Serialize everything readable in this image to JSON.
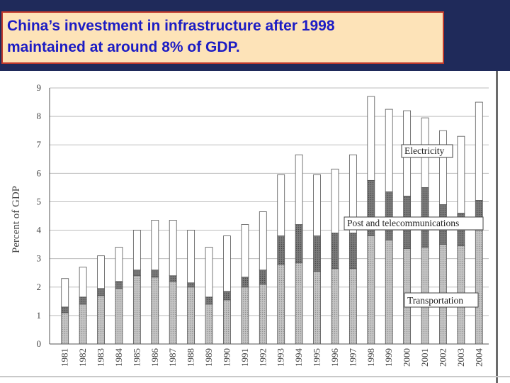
{
  "header": {
    "title_line1": "China’s investment in infrastructure after 1998",
    "title_line2": "maintained at around 8% of GDP."
  },
  "colors": {
    "band": "#1f2a5a",
    "title_text": "#1c1cc4",
    "title_bg": "#fde3b8",
    "transportation": "#b8b8b8",
    "post": "#7a7a7a",
    "electricity": "#ffffff"
  },
  "chart_data": {
    "type": "bar",
    "stacked": true,
    "title": "",
    "xlabel": "",
    "ylabel": "Percent of GDP",
    "ylim": [
      0,
      9
    ],
    "yticks": [
      0,
      1,
      2,
      3,
      4,
      5,
      6,
      7,
      8,
      9
    ],
    "grid": "horizontal",
    "categories": [
      "1981",
      "1982",
      "1983",
      "1984",
      "1985",
      "1986",
      "1987",
      "1988",
      "1989",
      "1990",
      "1991",
      "1992",
      "1993",
      "1994",
      "1995",
      "1996",
      "1997",
      "1998",
      "1999",
      "2000",
      "2001",
      "2002",
      "2003",
      "2004"
    ],
    "series": [
      {
        "name": "Transportation",
        "values": [
          1.1,
          1.4,
          1.7,
          1.95,
          2.4,
          2.35,
          2.2,
          2.0,
          1.4,
          1.55,
          2.0,
          2.1,
          2.8,
          2.85,
          2.55,
          2.65,
          2.65,
          3.8,
          3.65,
          3.35,
          3.4,
          3.5,
          3.45,
          4.0
        ]
      },
      {
        "name": "Post and telecommunications",
        "values": [
          0.2,
          0.25,
          0.25,
          0.25,
          0.2,
          0.25,
          0.2,
          0.15,
          0.25,
          0.3,
          0.35,
          0.5,
          1.0,
          1.35,
          1.25,
          1.25,
          1.25,
          1.95,
          1.7,
          1.85,
          2.1,
          1.4,
          1.15,
          1.05
        ]
      },
      {
        "name": "Electricity",
        "values": [
          1.0,
          1.05,
          1.15,
          1.2,
          1.4,
          1.75,
          1.95,
          1.85,
          1.75,
          1.95,
          1.85,
          2.05,
          2.15,
          2.45,
          2.15,
          2.25,
          2.75,
          2.95,
          2.9,
          3.0,
          2.45,
          2.6,
          2.7,
          3.45
        ]
      }
    ],
    "annotations": [
      "Electricity",
      "Post and telecommunications",
      "Transportation"
    ]
  }
}
